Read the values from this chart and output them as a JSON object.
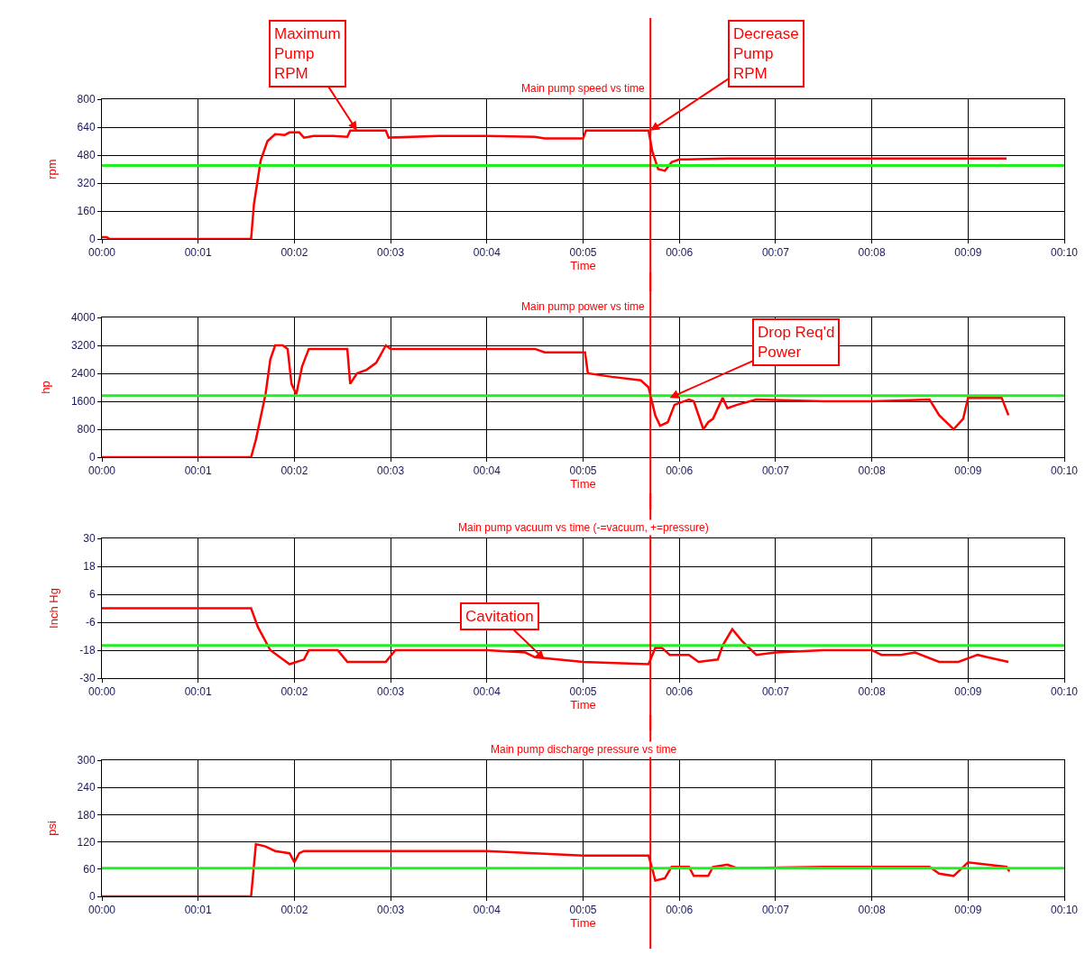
{
  "chart_data": [
    {
      "type": "line",
      "title": "Main pump speed vs time",
      "xlabel": "Time",
      "ylabel": "rpm",
      "grid": true,
      "marker": "none",
      "line_style": "solid",
      "xlim": [
        0,
        10
      ],
      "xticks": [
        {
          "value": 0,
          "label": "00:00"
        },
        {
          "value": 1,
          "label": "00:01"
        },
        {
          "value": 2,
          "label": "00:02"
        },
        {
          "value": 3,
          "label": "00:03"
        },
        {
          "value": 4,
          "label": "00:04"
        },
        {
          "value": 5,
          "label": "00:05"
        },
        {
          "value": 6,
          "label": "00:06"
        },
        {
          "value": 7,
          "label": "00:07"
        },
        {
          "value": 8,
          "label": "00:08"
        },
        {
          "value": 9,
          "label": "00:09"
        },
        {
          "value": 10,
          "label": "00:10"
        }
      ],
      "ylim": [
        0,
        800
      ],
      "yticks": [
        0,
        160,
        320,
        480,
        640,
        800
      ],
      "x": [
        0,
        0.05,
        0.08,
        1.55,
        1.58,
        1.65,
        1.72,
        1.8,
        1.9,
        1.95,
        2.05,
        2.1,
        2.2,
        2.4,
        2.55,
        2.58,
        2.95,
        2.98,
        3.5,
        4.0,
        4.5,
        4.6,
        5.0,
        5.03,
        5.68,
        5.72,
        5.78,
        5.85,
        5.92,
        6.0,
        6.5,
        9.4
      ],
      "series": [
        {
          "color": "#ff0000",
          "values": [
            10,
            10,
            0,
            0,
            200,
            450,
            560,
            600,
            595,
            610,
            610,
            580,
            590,
            590,
            585,
            620,
            620,
            580,
            590,
            590,
            585,
            575,
            575,
            620,
            620,
            500,
            400,
            390,
            440,
            455,
            460,
            460
          ]
        }
      ],
      "ref_lines": [
        {
          "axis": "y",
          "value": 420,
          "color": "#22ee22"
        },
        {
          "axis": "x",
          "value": 5.7,
          "color": "#ff0000"
        }
      ],
      "annotations": [
        {
          "text": "Maximum\nPump\nRPM",
          "x": 2.65,
          "y": 620
        },
        {
          "text": "Decrease\nPump\nRPM",
          "x": 5.7,
          "y": 620
        }
      ]
    },
    {
      "type": "line",
      "title": "Main pump power vs time",
      "xlabel": "Time",
      "ylabel": "hp",
      "grid": true,
      "marker": "none",
      "line_style": "solid",
      "xlim": [
        0,
        10
      ],
      "xticks": [
        {
          "value": 0,
          "label": "00:00"
        },
        {
          "value": 1,
          "label": "00:01"
        },
        {
          "value": 2,
          "label": "00:02"
        },
        {
          "value": 3,
          "label": "00:03"
        },
        {
          "value": 4,
          "label": "00:04"
        },
        {
          "value": 5,
          "label": "00:05"
        },
        {
          "value": 6,
          "label": "00:06"
        },
        {
          "value": 7,
          "label": "00:07"
        },
        {
          "value": 8,
          "label": "00:08"
        },
        {
          "value": 9,
          "label": "00:09"
        },
        {
          "value": 10,
          "label": "00:10"
        }
      ],
      "ylim": [
        0,
        4000
      ],
      "yticks": [
        0,
        800,
        1600,
        2400,
        3200,
        4000
      ],
      "x": [
        0,
        1.55,
        1.6,
        1.7,
        1.75,
        1.8,
        1.88,
        1.93,
        1.97,
        2.02,
        2.08,
        2.15,
        2.55,
        2.58,
        2.65,
        2.75,
        2.85,
        2.95,
        3.0,
        4.5,
        4.6,
        5.02,
        5.05,
        5.3,
        5.6,
        5.68,
        5.75,
        5.8,
        5.88,
        5.95,
        6.1,
        6.15,
        6.25,
        6.3,
        6.35,
        6.45,
        6.5,
        6.6,
        6.8,
        7.5,
        8.0,
        8.6,
        8.7,
        8.85,
        8.95,
        9.0,
        9.35,
        9.42
      ],
      "series": [
        {
          "color": "#ff0000",
          "values": [
            0,
            0,
            500,
            1800,
            2800,
            3200,
            3200,
            3100,
            2100,
            1800,
            2600,
            3100,
            3100,
            2100,
            2400,
            2500,
            2700,
            3200,
            3100,
            3100,
            3000,
            3000,
            2400,
            2300,
            2200,
            2000,
            1200,
            900,
            1000,
            1500,
            1650,
            1600,
            800,
            1000,
            1100,
            1700,
            1400,
            1500,
            1650,
            1600,
            1600,
            1650,
            1200,
            800,
            1100,
            1700,
            1700,
            1200
          ]
        }
      ],
      "ref_lines": [
        {
          "axis": "y",
          "value": 1760,
          "color": "#22ee22"
        },
        {
          "axis": "x",
          "value": 5.7,
          "color": "#ff0000"
        }
      ],
      "annotations": [
        {
          "text": "Drop Req'd\nPower",
          "x": 5.9,
          "y": 1700
        }
      ]
    },
    {
      "type": "line",
      "title": "Main pump vacuum vs time (-=vacuum, +=pressure)",
      "xlabel": "Time",
      "ylabel": "Inch Hg",
      "grid": true,
      "marker": "none",
      "line_style": "solid",
      "xlim": [
        0,
        10
      ],
      "xticks": [
        {
          "value": 0,
          "label": "00:00"
        },
        {
          "value": 1,
          "label": "00:01"
        },
        {
          "value": 2,
          "label": "00:02"
        },
        {
          "value": 3,
          "label": "00:03"
        },
        {
          "value": 4,
          "label": "00:04"
        },
        {
          "value": 5,
          "label": "00:05"
        },
        {
          "value": 6,
          "label": "00:06"
        },
        {
          "value": 7,
          "label": "00:07"
        },
        {
          "value": 8,
          "label": "00:08"
        },
        {
          "value": 9,
          "label": "00:09"
        },
        {
          "value": 10,
          "label": "00:10"
        }
      ],
      "ylim": [
        -30,
        30
      ],
      "yticks": [
        -30,
        -18,
        -6,
        6,
        18,
        30
      ],
      "x": [
        0,
        1.55,
        1.62,
        1.75,
        1.85,
        1.95,
        2.1,
        2.15,
        2.45,
        2.55,
        2.95,
        3.05,
        3.5,
        4.0,
        4.4,
        4.5,
        5.0,
        5.68,
        5.75,
        5.82,
        5.9,
        6.1,
        6.2,
        6.4,
        6.45,
        6.55,
        6.65,
        6.8,
        7.0,
        7.5,
        8.0,
        8.1,
        8.3,
        8.45,
        8.7,
        8.9,
        9.1,
        9.2,
        9.42
      ],
      "series": [
        {
          "color": "#ff0000",
          "values": [
            0,
            0,
            -8,
            -18,
            -21,
            -24,
            -22,
            -18,
            -18,
            -23,
            -23,
            -18,
            -18,
            -18,
            -19,
            -21,
            -23,
            -24,
            -17,
            -17,
            -20,
            -20,
            -23,
            -22,
            -16,
            -9,
            -14,
            -20,
            -19,
            -18,
            -18,
            -20,
            -20,
            -19,
            -23,
            -23,
            -20,
            -21,
            -23
          ]
        }
      ],
      "ref_lines": [
        {
          "axis": "y",
          "value": -16,
          "color": "#22ee22"
        },
        {
          "axis": "x",
          "value": 5.7,
          "color": "#ff0000"
        }
      ],
      "annotations": [
        {
          "text": "Cavitation",
          "x": 4.6,
          "y": -22
        }
      ]
    },
    {
      "type": "line",
      "title": "Main pump discharge pressure vs time",
      "xlabel": "Time",
      "ylabel": "psi",
      "grid": true,
      "marker": "none",
      "line_style": "solid",
      "xlim": [
        0,
        10
      ],
      "xticks": [
        {
          "value": 0,
          "label": "00:00"
        },
        {
          "value": 1,
          "label": "00:01"
        },
        {
          "value": 2,
          "label": "00:02"
        },
        {
          "value": 3,
          "label": "00:03"
        },
        {
          "value": 4,
          "label": "00:04"
        },
        {
          "value": 5,
          "label": "00:05"
        },
        {
          "value": 6,
          "label": "00:06"
        },
        {
          "value": 7,
          "label": "00:07"
        },
        {
          "value": 8,
          "label": "00:08"
        },
        {
          "value": 9,
          "label": "00:09"
        },
        {
          "value": 10,
          "label": "00:10"
        }
      ],
      "ylim": [
        0,
        300
      ],
      "yticks": [
        0,
        60,
        120,
        180,
        240,
        300
      ],
      "x": [
        0,
        1.55,
        1.6,
        1.7,
        1.8,
        1.95,
        2.0,
        2.05,
        2.1,
        2.5,
        3.0,
        4.0,
        4.5,
        5.0,
        5.68,
        5.72,
        5.75,
        5.85,
        5.92,
        6.1,
        6.15,
        6.3,
        6.35,
        6.5,
        6.6,
        7.5,
        8.0,
        8.6,
        8.7,
        8.85,
        9.0,
        9.4,
        9.43
      ],
      "series": [
        {
          "color": "#ff0000",
          "values": [
            0,
            0,
            115,
            110,
            100,
            95,
            75,
            95,
            100,
            100,
            100,
            100,
            95,
            90,
            90,
            60,
            35,
            40,
            65,
            65,
            45,
            45,
            65,
            70,
            62,
            65,
            65,
            65,
            50,
            45,
            75,
            65,
            55
          ]
        }
      ],
      "ref_lines": [
        {
          "axis": "y",
          "value": 62,
          "color": "#22ee22"
        },
        {
          "axis": "x",
          "value": 5.7,
          "color": "#ff0000"
        }
      ]
    }
  ]
}
